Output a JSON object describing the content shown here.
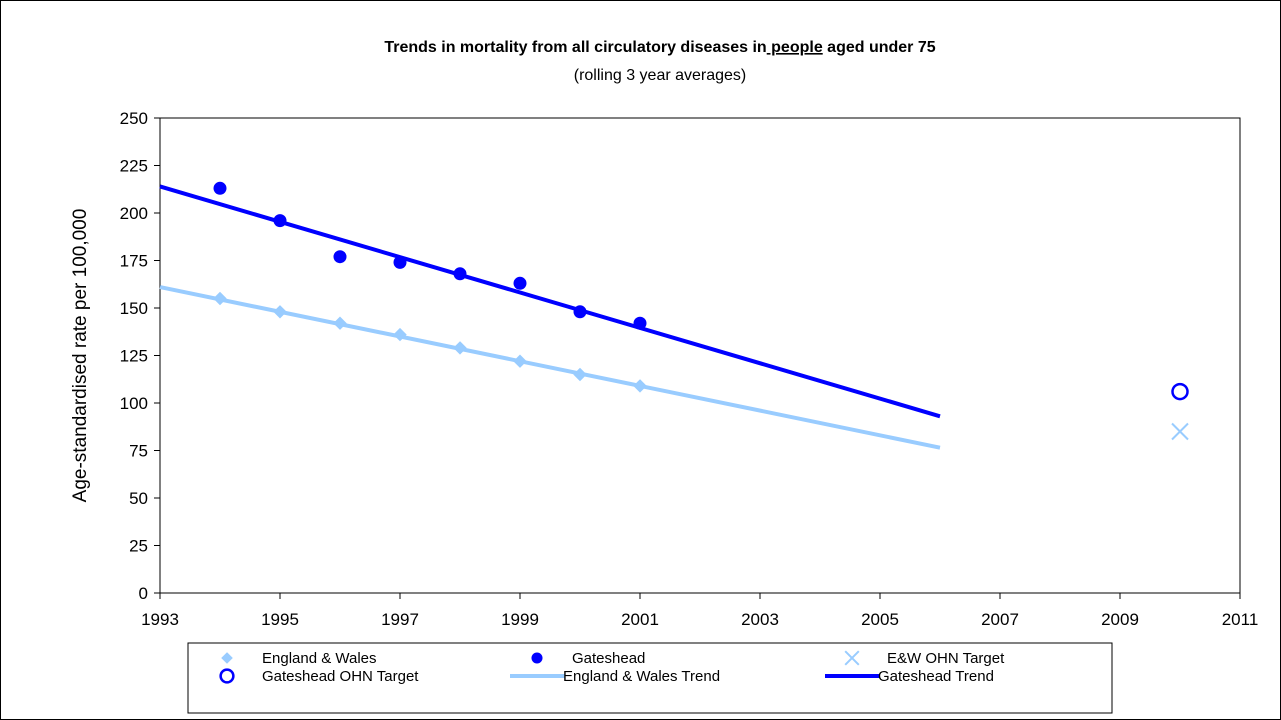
{
  "chart_data": {
    "type": "scatter",
    "title_parts": [
      "Trends in mortality from all circulatory diseases in",
      "people",
      "aged under 75"
    ],
    "subtitle": "(rolling 3 year averages)",
    "xlabel": "",
    "ylabel": "Age-standardised rate per 100,000",
    "xlim": [
      1993,
      2011
    ],
    "ylim": [
      0,
      250
    ],
    "x_ticks": [
      "1993",
      "1995",
      "1997",
      "1999",
      "2001",
      "2003",
      "2005",
      "2007",
      "2009",
      "2011"
    ],
    "y_ticks": [
      "0",
      "25",
      "50",
      "75",
      "100",
      "125",
      "150",
      "175",
      "200",
      "225",
      "250"
    ],
    "grid": false,
    "legend_position": "bottom",
    "series": [
      {
        "name": "England & Wales",
        "kind": "points",
        "marker": "diamond",
        "color": "#99ccff",
        "x": [
          1994,
          1995,
          1996,
          1997,
          1998,
          1999,
          2000,
          2001
        ],
        "y": [
          155,
          148,
          142,
          136,
          129,
          122,
          115,
          109
        ]
      },
      {
        "name": "Gateshead",
        "kind": "points",
        "marker": "circle-filled",
        "color": "#0000ff",
        "x": [
          1994,
          1995,
          1996,
          1997,
          1998,
          1999,
          2000,
          2001
        ],
        "y": [
          213,
          196,
          177,
          174,
          168,
          163,
          148,
          142
        ]
      },
      {
        "name": "E&W OHN Target",
        "kind": "points",
        "marker": "x",
        "color": "#99ccff",
        "x": [
          2010
        ],
        "y": [
          85
        ]
      },
      {
        "name": "Gateshead OHN Target",
        "kind": "points",
        "marker": "circle-open",
        "color": "#0000ff",
        "x": [
          2010
        ],
        "y": [
          106
        ]
      },
      {
        "name": "England & Wales Trend",
        "kind": "line",
        "color": "#99ccff",
        "x": [
          1993,
          2006
        ],
        "y": [
          161,
          76.5
        ]
      },
      {
        "name": "Gateshead Trend",
        "kind": "line",
        "color": "#0000ff",
        "x": [
          1993,
          2006
        ],
        "y": [
          214,
          93
        ]
      }
    ]
  }
}
